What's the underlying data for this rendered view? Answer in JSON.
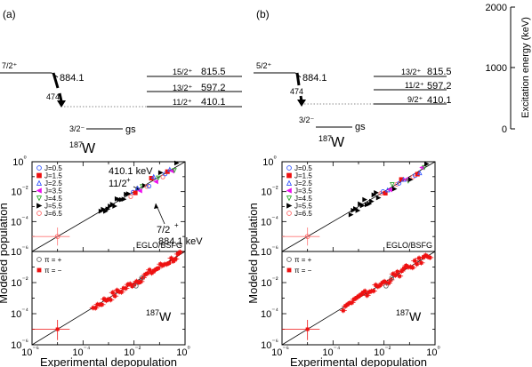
{
  "panels": [
    {
      "tag": "(a)",
      "level_scheme": {
        "initial": {
          "spin": "7/2⁺",
          "energy": "884.1"
        },
        "transition": "474",
        "levels": [
          {
            "spin": "15/2⁺",
            "energy": "815.5"
          },
          {
            "spin": "13/2⁺",
            "energy": "597.2"
          },
          {
            "spin": "11/2⁺",
            "energy": "410.1"
          }
        ],
        "ground": {
          "spin": "3/2⁻",
          "label": "gs"
        },
        "nucleus": {
          "mass": "187",
          "symbol": "W"
        }
      },
      "upper_annotations": {
        "a1_line1": "410.1 keV",
        "a1_spin": "11/2",
        "a1_parity": "+",
        "a2_spin": "7/2",
        "a2_parity": "+",
        "a2_line2": "884.1 keV"
      }
    },
    {
      "tag": "(b)",
      "level_scheme": {
        "initial": {
          "spin": "5/2⁺",
          "energy": "884.1"
        },
        "transition": "474",
        "levels": [
          {
            "spin": "13/2⁺",
            "energy": "815.5"
          },
          {
            "spin": "11/2⁺",
            "energy": "597.2"
          },
          {
            "spin": "9/2⁺",
            "energy": "410.1"
          }
        ],
        "ground": {
          "spin": "3/2⁻",
          "label": "gs"
        },
        "nucleus": {
          "mass": "187",
          "symbol": "W"
        }
      }
    }
  ],
  "energy_axis": {
    "label": "Excitation energy (keV)",
    "ticks": [
      "2000",
      "1000",
      "0"
    ]
  },
  "plot_labels": {
    "model": "EGLO/BSFG",
    "nucleus_mass": "187",
    "nucleus_symbol": "W",
    "ylabel": "Modeled population",
    "xlabel": "Experimental depopulation"
  },
  "chart_data": [
    {
      "type": "scatter",
      "title": "",
      "xlabel": "Experimental depopulation",
      "ylabel": "Modeled population",
      "xscale": "log",
      "yscale": "log",
      "xlim": [
        1e-06,
        1
      ],
      "ylim": [
        1e-06,
        1
      ],
      "x_ticks": [
        "10⁻⁶",
        "10⁻⁴",
        "10⁻²",
        "10⁰"
      ],
      "y_ticks_upper": [
        "10⁰",
        "10⁻²",
        "10⁻⁴",
        "10⁻⁶"
      ],
      "y_ticks_lower": [
        "10⁻²",
        "10⁻⁴",
        "10⁻⁶"
      ],
      "legend_upper": [
        "J=0.5",
        "J=1.5",
        "J=2.5",
        "J=3.5",
        "J=4.5",
        "J=5.5",
        "J=6.5"
      ],
      "legend_lower": [
        "π = +",
        "π = −"
      ],
      "panel": "(a)"
    },
    {
      "type": "scatter",
      "title": "",
      "xlabel": "Experimental depopulation",
      "ylabel": "Modeled population",
      "xscale": "log",
      "yscale": "log",
      "xlim": [
        1e-06,
        1
      ],
      "ylim": [
        1e-06,
        1
      ],
      "x_ticks": [
        "10⁻⁶",
        "10⁻⁴",
        "10⁻²",
        "10⁰"
      ],
      "y_ticks_upper": [
        "10⁰",
        "10⁻²",
        "10⁻⁴",
        "10⁻⁶"
      ],
      "y_ticks_lower": [
        "10⁻²",
        "10⁻⁴",
        "10⁻⁶"
      ],
      "legend_upper": [
        "J=0.5",
        "J=1.5",
        "J=2.5",
        "J=3.5",
        "J=4.5",
        "J=5.5",
        "J=6.5"
      ],
      "legend_lower": [
        "π = +",
        "π = −"
      ],
      "panel": "(b)"
    }
  ]
}
